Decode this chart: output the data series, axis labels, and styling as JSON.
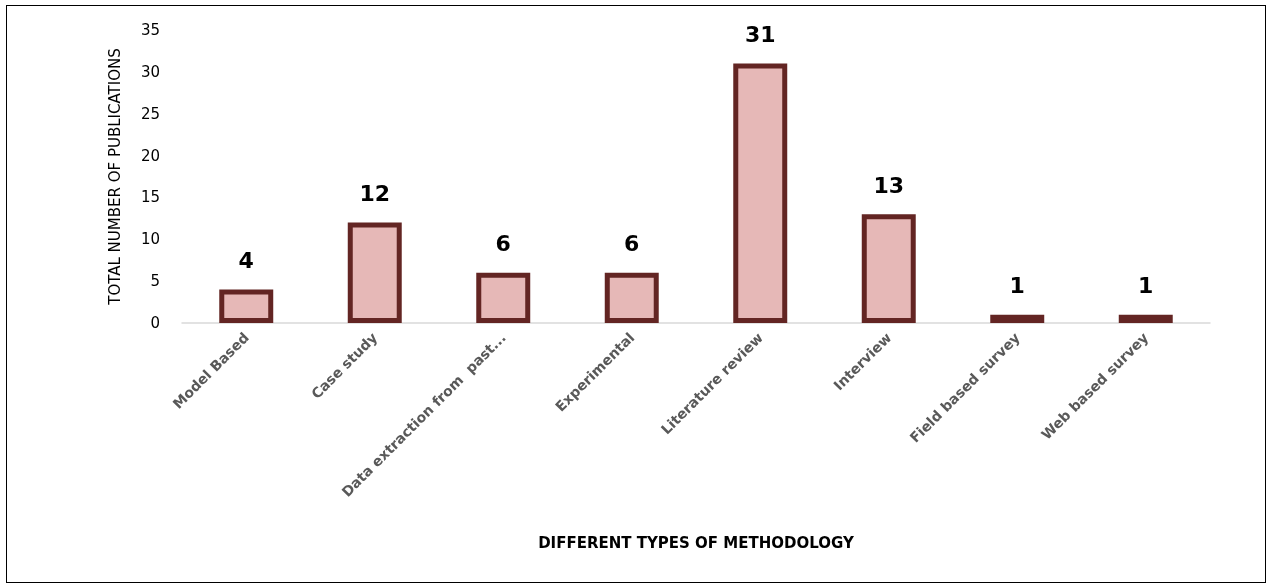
{
  "chart_data": {
    "type": "bar",
    "xlabel": "DIFFERENT TYPES OF METHODOLOGY",
    "ylabel": "TOTAL NUMBER OF PUBLICATIONS",
    "categories": [
      "Model Based",
      "Case study",
      "Data extraction from  past...",
      "Experimental",
      "Literature review",
      "Interview",
      "Field based survey",
      "Web based survey"
    ],
    "values": [
      4,
      12,
      6,
      6,
      31,
      13,
      1,
      1
    ],
    "color": "#e6b8b7",
    "ylim": [
      0,
      35
    ],
    "yticks": [
      0,
      5,
      10,
      15,
      20,
      25,
      30,
      35
    ],
    "grid": false,
    "data_labels": true
  }
}
